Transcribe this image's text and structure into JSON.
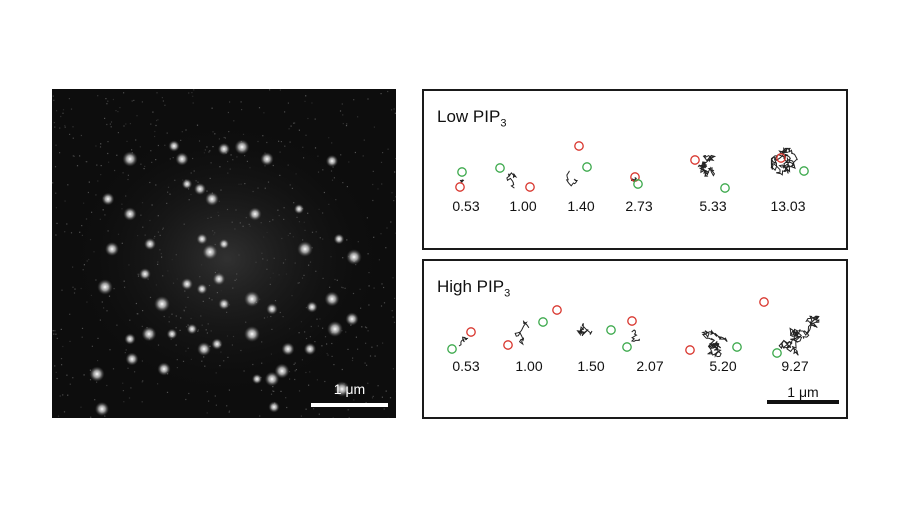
{
  "micrograph": {
    "scalebar_label": "1 μm"
  },
  "low_panel": {
    "title_main": "Low PIP",
    "title_sub": "3",
    "diffusion_values": [
      "0.53",
      "1.00",
      "1.40",
      "2.73",
      "5.33",
      "13.03"
    ]
  },
  "high_panel": {
    "title_main": "High PIP",
    "title_sub": "3",
    "diffusion_values": [
      "0.53",
      "1.00",
      "1.50",
      "2.07",
      "5.20",
      "9.27"
    ],
    "scalebar_label": "1 μm"
  },
  "colors": {
    "start_marker": "#d8342c",
    "end_marker": "#3aa84a",
    "trajectory": "#222222"
  }
}
